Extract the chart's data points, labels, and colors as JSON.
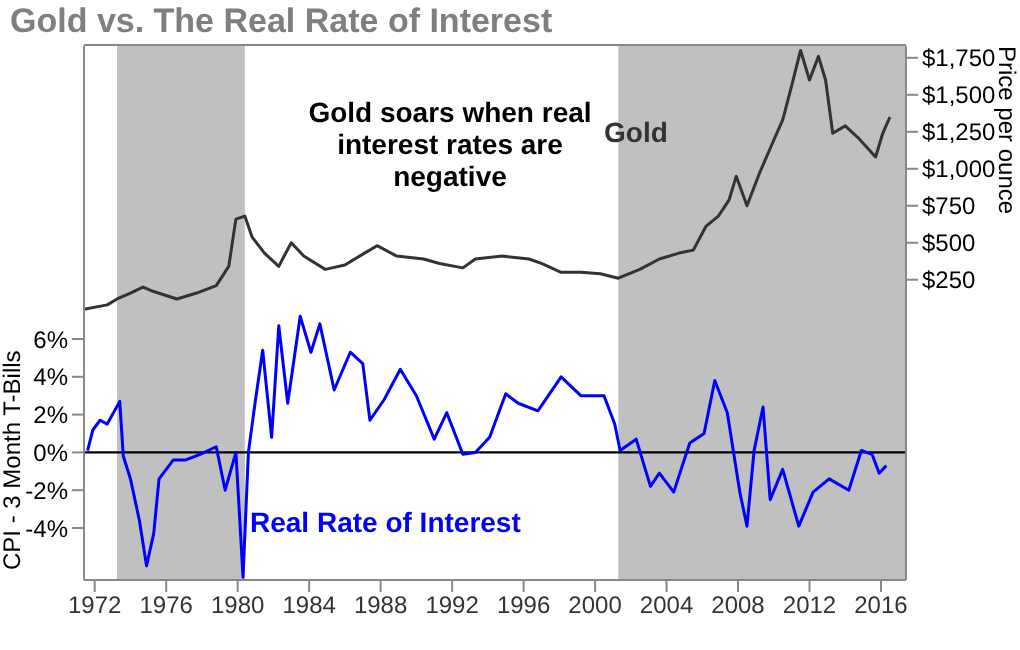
{
  "chart_data": {
    "type": "line",
    "title": "Gold vs. The Real Rate of Interest",
    "ylabel": "CPI - 3 Month T-Bills",
    "y2label": "Price per ounce",
    "annotations": [
      "Gold soars when real interest rates are negative"
    ],
    "xlim": [
      1971.4,
      2017.4
    ],
    "xticks": [
      1972,
      1976,
      1980,
      1984,
      1988,
      1992,
      1996,
      2000,
      2004,
      2008,
      2012,
      2016
    ],
    "ylim": [
      -6.75,
      21.5
    ],
    "yticks": [
      {
        "value": -4,
        "label": "-4%"
      },
      {
        "value": -2,
        "label": "-2%"
      },
      {
        "value": 0,
        "label": "0%"
      },
      {
        "value": 2,
        "label": "2%"
      },
      {
        "value": 4,
        "label": "4%"
      },
      {
        "value": 6,
        "label": "6%"
      }
    ],
    "y2lim": [
      -1780,
      1830
    ],
    "y2ticks": [
      {
        "value": 250,
        "label": "$250"
      },
      {
        "value": 500,
        "label": "$500"
      },
      {
        "value": 750,
        "label": "$750"
      },
      {
        "value": 1000,
        "label": "$1,000"
      },
      {
        "value": 1250,
        "label": "$1,250"
      },
      {
        "value": 1500,
        "label": "$1,500"
      },
      {
        "value": 1750,
        "label": "$1,750"
      }
    ],
    "legend": false,
    "marker": "none",
    "line_style": "solid",
    "ref_lines": [
      {
        "axis": "y",
        "value": 0,
        "color": "#000000"
      }
    ],
    "bands": [
      {
        "axis": "x",
        "from": 1973.25,
        "to": 1980.4,
        "color": "#c0c0c0"
      },
      {
        "axis": "x",
        "from": 2001.3,
        "to": 2017.4,
        "color": "#c0c0c0"
      }
    ],
    "series": [
      {
        "name": "Gold",
        "color": "#333333",
        "axis": "y2",
        "x": [
          1971.4,
          1972.7,
          1973.25,
          1974,
          1974.7,
          1975.3,
          1976.6,
          1977.7,
          1978.8,
          1979.5,
          1979.9,
          1980.4,
          1980.8,
          1981.5,
          1982.3,
          1982.6,
          1983,
          1983.7,
          1984.9,
          1986,
          1987.1,
          1987.8,
          1988.9,
          1990.4,
          1991.3,
          1992.6,
          1993.3,
          1994.8,
          1996.3,
          1997,
          1998.1,
          1999.2,
          2000.3,
          2001.3,
          2002.5,
          2003.6,
          2004.7,
          2005.5,
          2006.2,
          2006.9,
          2007.5,
          2007.9,
          2008.5,
          2009.2,
          2009.7,
          2010.5,
          2011,
          2011.5,
          2012,
          2012.5,
          2012.9,
          2013.3,
          2014,
          2014.8,
          2015.7,
          2016.1,
          2016.5
        ],
        "values": [
          50,
          80,
          120,
          160,
          200,
          170,
          120,
          160,
          210,
          340,
          660,
          680,
          540,
          430,
          340,
          410,
          500,
          410,
          320,
          350,
          430,
          480,
          410,
          390,
          360,
          330,
          390,
          410,
          390,
          360,
          300,
          300,
          290,
          260,
          320,
          390,
          430,
          450,
          610,
          680,
          790,
          950,
          750,
          970,
          1110,
          1330,
          1560,
          1800,
          1600,
          1760,
          1600,
          1240,
          1290,
          1200,
          1080,
          1240,
          1350
        ]
      },
      {
        "name": "Real Rate of Interest",
        "color": "#0000ff",
        "axis": "y",
        "x": [
          1971.6,
          1971.9,
          1972.3,
          1972.7,
          1973.4,
          1973.6,
          1974,
          1974.5,
          1974.9,
          1975.3,
          1975.6,
          1976.4,
          1977.1,
          1977.9,
          1978.8,
          1979.3,
          1979.9,
          1980.3,
          1980.6,
          1981,
          1981.4,
          1981.9,
          1982.3,
          1982.8,
          1983.5,
          1984.1,
          1984.6,
          1985.4,
          1986.3,
          1987,
          1987.4,
          1988.2,
          1989.1,
          1990,
          1991,
          1991.7,
          1992.6,
          1993.3,
          1994.1,
          1995,
          1995.7,
          1996.8,
          1998.1,
          1999.2,
          2000.5,
          2001.1,
          2001.4,
          2002.3,
          2003.1,
          2003.6,
          2004.4,
          2005.3,
          2006.1,
          2006.7,
          2007.4,
          2008.1,
          2008.5,
          2008.9,
          2009.4,
          2009.8,
          2010.5,
          2011.4,
          2012.2,
          2013.1,
          2014.2,
          2014.9,
          2015.5,
          2015.9,
          2016.3
        ],
        "values": [
          0.1,
          1.2,
          1.7,
          1.5,
          2.7,
          -0.2,
          -1.4,
          -3.6,
          -6.0,
          -4.3,
          -1.4,
          -0.4,
          -0.4,
          -0.1,
          0.3,
          -2.0,
          0,
          -6.6,
          0,
          2.8,
          5.4,
          0.8,
          6.7,
          2.6,
          7.2,
          5.3,
          6.8,
          3.3,
          5.3,
          4.7,
          1.7,
          2.8,
          4.4,
          3.0,
          0.7,
          2.1,
          -0.1,
          0,
          0.8,
          3.1,
          2.6,
          2.2,
          4.0,
          3.0,
          3.0,
          1.5,
          0.1,
          0.7,
          -1.8,
          -1.1,
          -2.1,
          0.5,
          1.0,
          3.8,
          2.1,
          -2.1,
          -3.9,
          0.1,
          2.4,
          -2.5,
          -0.9,
          -3.9,
          -2.1,
          -1.4,
          -2.0,
          0.1,
          -0.1,
          -1.1,
          -0.7
        ]
      }
    ]
  }
}
